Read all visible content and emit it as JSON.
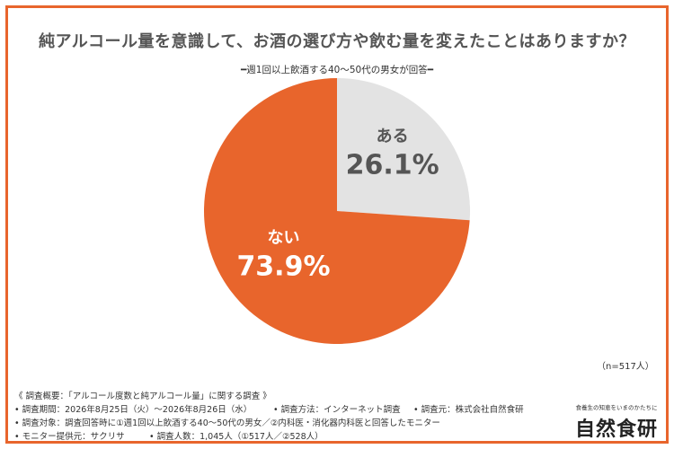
{
  "title": "純アルコール量を意識して、お酒の選び方や飲む量を変えたことはありますか？",
  "subtitle": "━週1回以上飲酒する40〜50代の男女が回答━",
  "sample_size": "（n=517人）",
  "colors": {
    "accent": "#E8652C",
    "secondary": "#E3E3E3",
    "frame": "#E8652C"
  },
  "chart_data": {
    "type": "pie",
    "title": "純アルコール量を意識して、お酒の選び方や飲む量を変えたことはありますか？",
    "categories": [
      "ある",
      "ない"
    ],
    "values": [
      26.1,
      73.9
    ],
    "value_labels": [
      "26.1%",
      "73.9%"
    ],
    "colors": [
      "#E3E3E3",
      "#E8652C"
    ],
    "label_colors": [
      "#555555",
      "#ffffff"
    ]
  },
  "notes": {
    "overview": "《 調査概要：「アルコール度数と純アルコール量」に関する調査 》",
    "period": "• 調査期間：2026年8月25日（火）〜2026年8月26日（水）",
    "method": "• 調査方法：インターネット調査",
    "organizer": "• 調査元：株式会社自然食研",
    "target": "• 調査対象：調査回答時に①週1回以上飲酒する40〜50代の男女／②内科医・消化器内科医と回答したモニター",
    "provider": "• モニター提供元：サクリサ",
    "respondents": "• 調査人数：1,045人（①517人／②528人）"
  },
  "logo": {
    "tagline": "食養生の知恵をいまのかたちに",
    "name": "自然食研"
  }
}
